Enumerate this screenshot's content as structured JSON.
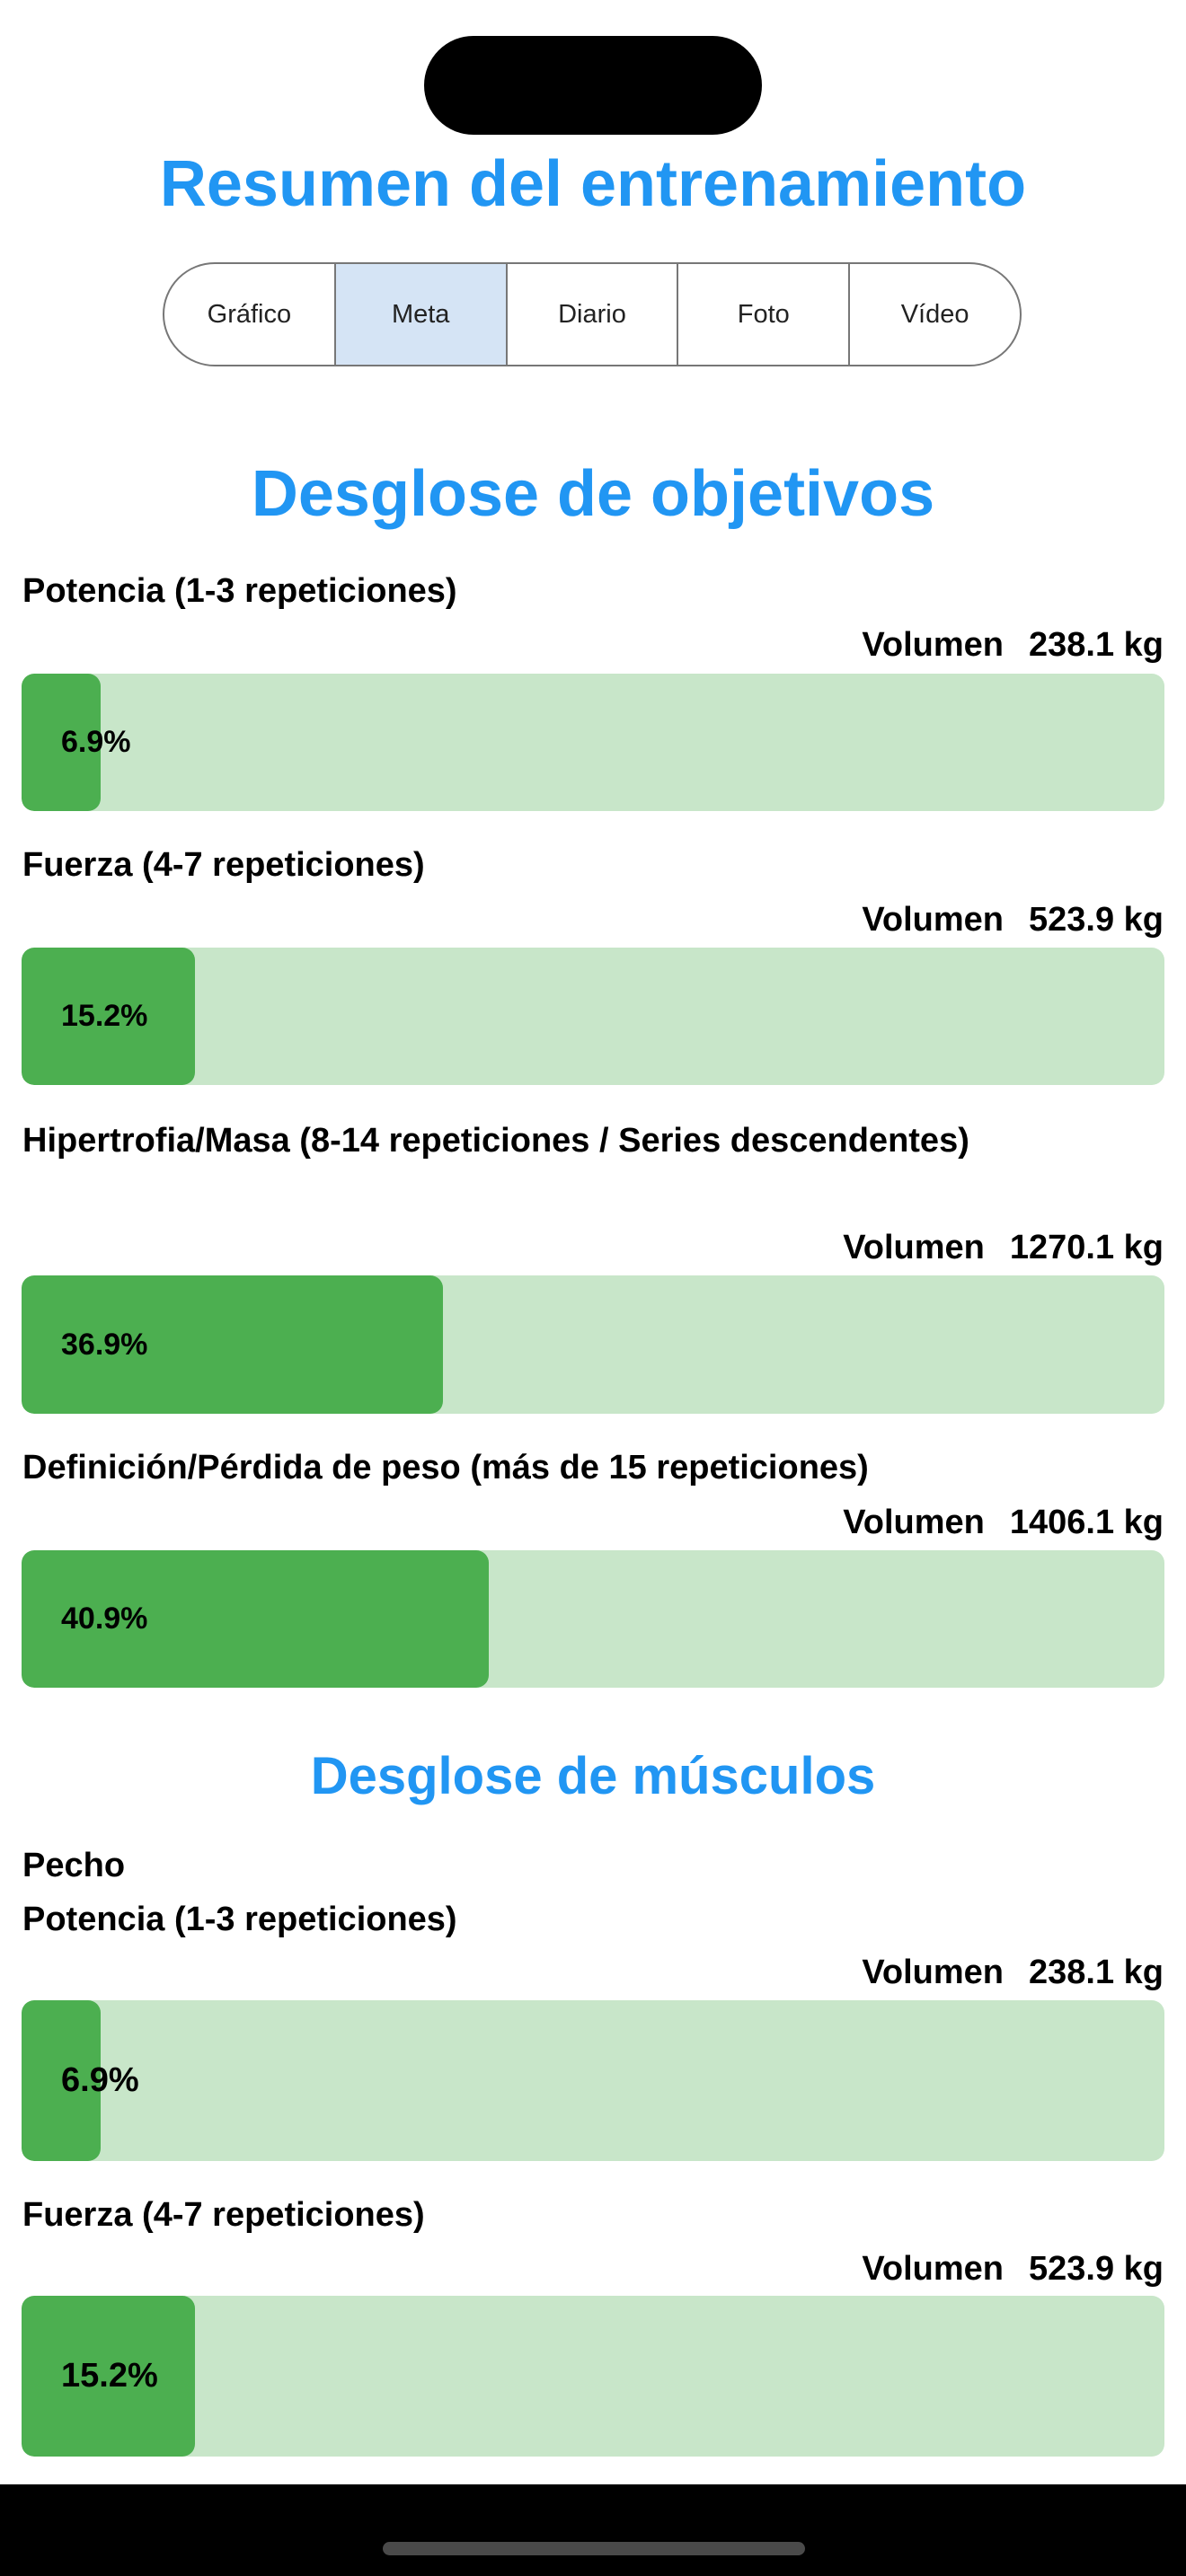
{
  "header": {
    "title": "Resumen del entrenamiento"
  },
  "tabs": [
    {
      "label": "Gráfico",
      "active": false
    },
    {
      "label": "Meta",
      "active": true
    },
    {
      "label": "Diario",
      "active": false
    },
    {
      "label": "Foto",
      "active": false
    },
    {
      "label": "Vídeo",
      "active": false
    }
  ],
  "goals": {
    "title": "Desglose de objetivos",
    "items": [
      {
        "label": "Potencia (1-3 repeticiones)",
        "volume_label": "Volumen",
        "volume": "238.1 kg",
        "percent_text": "6.9%",
        "percent": 6.9
      },
      {
        "label": "Fuerza (4-7 repeticiones)",
        "volume_label": "Volumen",
        "volume": "523.9 kg",
        "percent_text": "15.2%",
        "percent": 15.2
      },
      {
        "label": "Hipertrofia/Masa (8-14 repeticiones / Series descendentes)",
        "volume_label": "Volumen",
        "volume": "1270.1 kg",
        "percent_text": "36.9%",
        "percent": 36.9
      },
      {
        "label": "Definición/Pérdida de peso (más de 15 repeticiones)",
        "volume_label": "Volumen",
        "volume": "1406.1 kg",
        "percent_text": "40.9%",
        "percent": 40.9
      }
    ]
  },
  "muscles": {
    "title": "Desglose de músculos",
    "group": "Pecho",
    "items": [
      {
        "label": "Potencia (1-3 repeticiones)",
        "volume_label": "Volumen",
        "volume": "238.1 kg",
        "percent_text": "6.9%",
        "percent": 6.9
      },
      {
        "label": "Fuerza (4-7 repeticiones)",
        "volume_label": "Volumen",
        "volume": "523.9 kg",
        "percent_text": "15.2%",
        "percent": 15.2
      }
    ]
  },
  "colors": {
    "accent": "#2196F3",
    "bar_fill": "#4CAF50",
    "bar_track": "#C8E6C9",
    "tab_active": "#D5E4F5"
  }
}
